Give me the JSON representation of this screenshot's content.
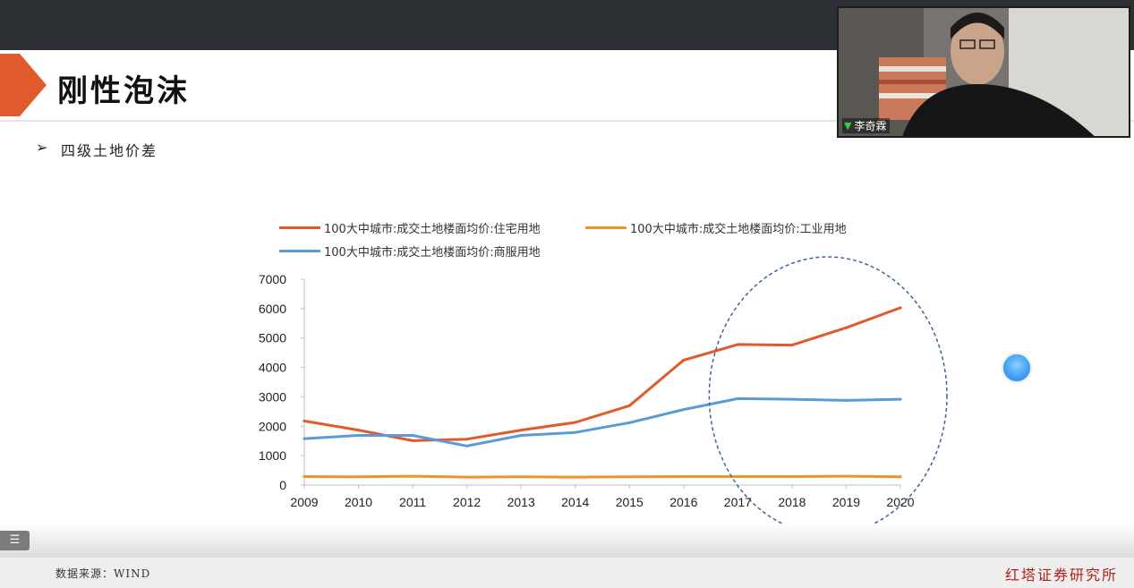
{
  "slide": {
    "title": "刚性泡沫",
    "bullet_marker": "➢",
    "bullet_text": "四级土地价差"
  },
  "chart_data": {
    "type": "line",
    "categories": [
      "2009",
      "2010",
      "2011",
      "2012",
      "2013",
      "2014",
      "2015",
      "2016",
      "2017",
      "2018",
      "2019",
      "2020"
    ],
    "ylim": [
      0,
      7000
    ],
    "yticks": [
      0,
      1000,
      2000,
      3000,
      4000,
      5000,
      6000,
      7000
    ],
    "grid": false,
    "legend_position": "top",
    "series": [
      {
        "name": "100大中城市:成交土地楼面均价:住宅用地",
        "color": "#e05a2b",
        "values": [
          2180,
          1870,
          1510,
          1560,
          1870,
          2130,
          2700,
          4250,
          4780,
          4760,
          5350,
          6030
        ]
      },
      {
        "name": "100大中城市:成交土地楼面均价:工业用地",
        "color": "#f0932b",
        "values": [
          290,
          280,
          300,
          270,
          280,
          270,
          280,
          290,
          290,
          290,
          300,
          280
        ]
      },
      {
        "name": "100大中城市:成交土地楼面均价:商服用地",
        "color": "#5b9bd5",
        "values": [
          1580,
          1690,
          1690,
          1330,
          1690,
          1790,
          2120,
          2570,
          2940,
          2920,
          2880,
          2920
        ]
      }
    ],
    "annotation": {
      "shape": "dashed-ellipse",
      "color": "#3f6296",
      "highlights_range": [
        "2017",
        "2020"
      ]
    }
  },
  "video": {
    "speaker_name": "李奇霖"
  },
  "footer": {
    "source": "数据来源：WIND",
    "brand": "红塔证券研究所"
  },
  "colors": {
    "accent": "#e05a2b",
    "topbar": "#2d3035",
    "brand_red": "#b02418"
  }
}
